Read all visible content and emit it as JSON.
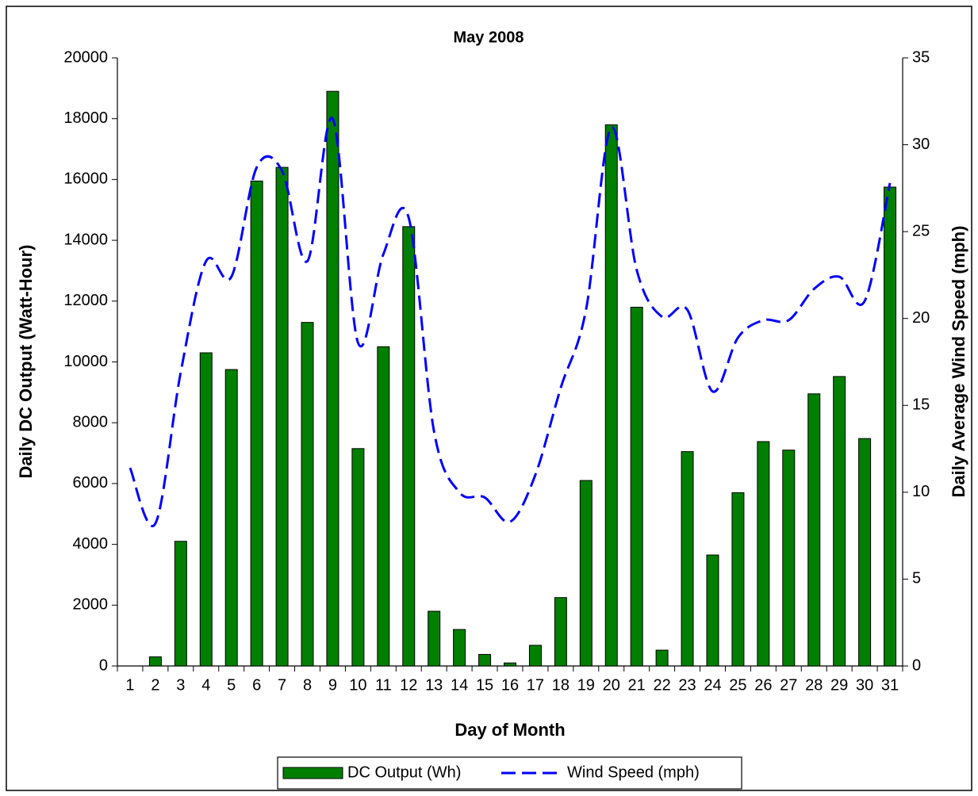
{
  "chart_data": {
    "type": "bar_line",
    "title": "May 2008",
    "xlabel": "Day of Month",
    "ylabel": "Daily DC Output (Watt-Hour)",
    "y2label": "Daily Average Wind Speed (mph)",
    "categories": [
      "1",
      "2",
      "3",
      "4",
      "5",
      "6",
      "7",
      "8",
      "9",
      "10",
      "11",
      "12",
      "13",
      "14",
      "15",
      "16",
      "17",
      "18",
      "19",
      "20",
      "21",
      "22",
      "23",
      "24",
      "25",
      "26",
      "27",
      "28",
      "29",
      "30",
      "31"
    ],
    "series": [
      {
        "name": "DC Output (Wh)",
        "type": "bar",
        "color": "#007f00",
        "values": [
          0,
          300,
          4100,
          10300,
          9750,
          15950,
          16400,
          11300,
          18900,
          7150,
          10500,
          14450,
          1800,
          1200,
          380,
          100,
          680,
          2250,
          6100,
          17800,
          11800,
          520,
          7050,
          3650,
          5700,
          7380,
          7100,
          8950,
          9520,
          7480,
          15750
        ]
      },
      {
        "name": "Wind Speed (mph)",
        "type": "line",
        "color": "#0000ff",
        "axis": "y2",
        "values": [
          11.4,
          8.2,
          16.9,
          23.3,
          22.4,
          28.7,
          28.5,
          23.3,
          31.5,
          18.6,
          23.7,
          25.8,
          13.5,
          10.0,
          9.7,
          8.3,
          11.0,
          16.0,
          20.5,
          31.0,
          22.8,
          20.1,
          20.5,
          15.8,
          18.9,
          19.9,
          19.9,
          21.7,
          22.4,
          21.0,
          27.8
        ]
      }
    ],
    "ylim": [
      0,
      20000
    ],
    "yticks": [
      0,
      2000,
      4000,
      6000,
      8000,
      10000,
      12000,
      14000,
      16000,
      18000,
      20000
    ],
    "y2lim": [
      0,
      35
    ],
    "y2ticks": [
      0,
      5,
      10,
      15,
      20,
      25,
      30,
      35
    ],
    "legend": "bottom"
  }
}
